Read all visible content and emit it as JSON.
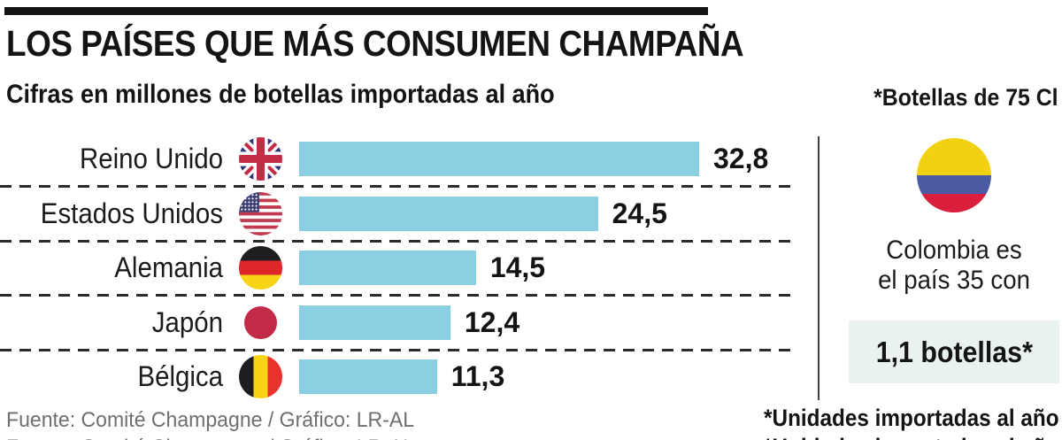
{
  "header": {
    "title": "LOS PAÍSES QUE MÁS CONSUMEN CHAMPAÑA",
    "subtitle": "Cifras en millones de botellas importadas al año",
    "bottle_note": "*Botellas de 75 Cl"
  },
  "chart_data": {
    "type": "bar",
    "orientation": "horizontal",
    "title": "LOS PAÍSES QUE MÁS CONSUMEN CHAMPAÑA",
    "subtitle": "Cifras en millones de botellas importadas al año",
    "categories": [
      "Reino Unido",
      "Estados Unidos",
      "Alemania",
      "Japón",
      "Bélgica"
    ],
    "values": [
      32.8,
      24.5,
      14.5,
      12.4,
      11.3
    ],
    "value_labels": [
      "32,8",
      "24,5",
      "14,5",
      "12,4",
      "11,3"
    ],
    "flags": [
      "uk",
      "us",
      "de",
      "jp",
      "be"
    ],
    "xlim": [
      0,
      32.8
    ],
    "grid": false,
    "bar_color": "#8ccfe2",
    "separator_style": "dashed"
  },
  "side_panel": {
    "flag": "colombia-flag",
    "line1": "Colombia es",
    "line2": "el país 35 con",
    "highlight": "1,1 botellas*",
    "highlight_bg": "#e9f2ee",
    "footnote": "*Unidades importadas al año"
  },
  "footer": {
    "source": "Fuente: Comité Champagne / Gráfico: LR-AL"
  },
  "colors": {
    "bar": "#8ccfe2",
    "top_rule": "#141414",
    "highlight_box": "#e9f2ee",
    "source_text": "#6f6f6f"
  }
}
